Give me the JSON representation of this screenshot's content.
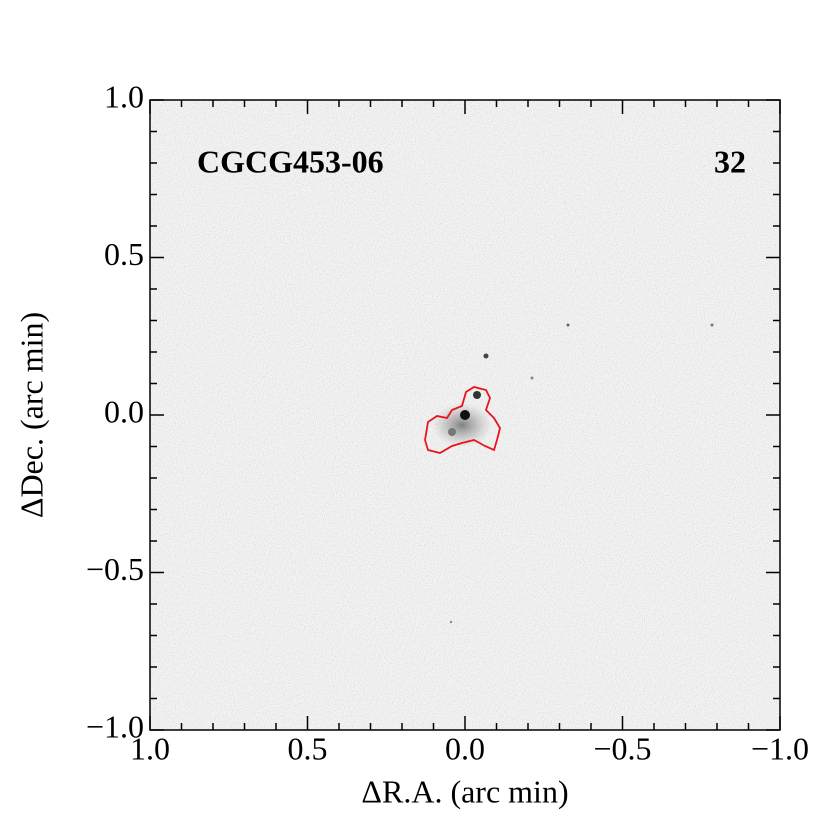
{
  "chart_data": {
    "type": "image",
    "annotations": [
      "CGCG453-06",
      "32"
    ],
    "xlabel": "ΔR.A. (arc min)",
    "ylabel": "ΔDec. (arc min)",
    "xlim": [
      1.0,
      -1.0
    ],
    "ylim": [
      -1.0,
      1.0
    ],
    "xticks": [
      {
        "value": 1.0,
        "label": "1.0"
      },
      {
        "value": 0.5,
        "label": "0.5"
      },
      {
        "value": 0,
        "label": "0.0"
      },
      {
        "value": -0.5,
        "label": "−0.5"
      },
      {
        "value": -1.0,
        "label": "−1.0"
      }
    ],
    "yticks": [
      {
        "value": -1.0,
        "label": "−1.0"
      },
      {
        "value": -0.5,
        "label": "−0.5"
      },
      {
        "value": 0,
        "label": "0.0"
      },
      {
        "value": 0.5,
        "label": "0.5"
      },
      {
        "value": 1.0,
        "label": "1.0"
      }
    ],
    "minor_xticks": [
      0.9,
      0.8,
      0.7,
      0.6,
      0.4,
      0.3,
      0.2,
      0.1,
      -0.1,
      -0.2,
      -0.3,
      -0.4,
      -0.6,
      -0.7,
      -0.8,
      -0.9
    ],
    "minor_yticks": [
      -0.9,
      -0.8,
      -0.7,
      -0.6,
      -0.4,
      -0.3,
      -0.2,
      -0.1,
      0.1,
      0.2,
      0.3,
      0.4,
      0.6,
      0.7,
      0.8,
      0.9
    ],
    "contour_color": "#e8141c"
  }
}
